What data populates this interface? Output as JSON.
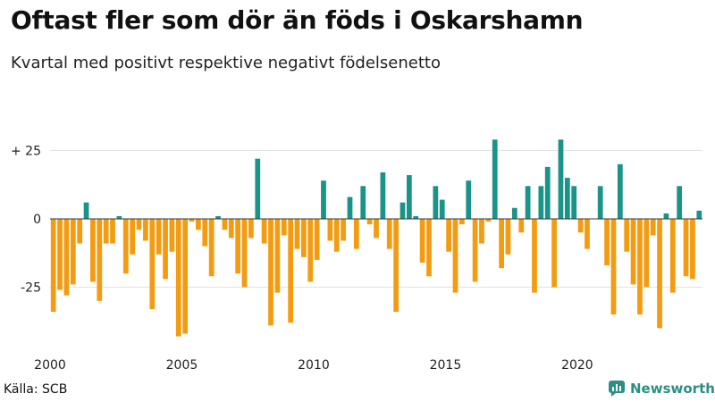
{
  "chart_data": {
    "type": "bar",
    "title": "Oftast fler som dör än föds i Oskarshamn",
    "subtitle": "Kvartal med positivt respektive negativt födelsenetto",
    "xlabel": "",
    "ylabel": "",
    "x_start": 2000,
    "periods_per_year": 4,
    "ylim": [
      -45,
      30
    ],
    "y_ticks": [
      {
        "value": 25,
        "label": "+ 25"
      },
      {
        "value": 0,
        "label": "0"
      },
      {
        "value": -25,
        "label": "-25"
      }
    ],
    "x_ticks": [
      "2000",
      "2005",
      "2010",
      "2015",
      "2020"
    ],
    "values": [
      -34,
      -26,
      -28,
      -24,
      -9,
      6,
      -23,
      -30,
      -9,
      -9,
      1,
      -20,
      -13,
      -4,
      -8,
      -33,
      -13,
      -22,
      -12,
      -43,
      -42,
      -1,
      -4,
      -10,
      -21,
      1,
      -4,
      -7,
      -20,
      -25,
      -7,
      22,
      -9,
      -39,
      -27,
      -6,
      -38,
      -11,
      -14,
      -23,
      -15,
      14,
      -8,
      -12,
      -8,
      8,
      -11,
      12,
      -2,
      -7,
      17,
      -11,
      -34,
      6,
      16,
      1,
      -16,
      -21,
      12,
      7,
      -12,
      -27,
      -2,
      14,
      -23,
      -9,
      -1,
      29,
      -18,
      -13,
      4,
      -5,
      12,
      -27,
      12,
      19,
      -25,
      29,
      15,
      12,
      -5,
      -11,
      0,
      12,
      -17,
      -35,
      20,
      -12,
      -24,
      -35,
      -25,
      -6,
      -40,
      2,
      -27,
      12,
      -21,
      -22,
      3
    ],
    "colors": {
      "positive": "#1a9488",
      "negative": "#f39c12",
      "grid": "#e3e3e3",
      "axis": "#333333"
    }
  },
  "footer": {
    "source": "Källa: SCB",
    "brand": "Newsworthy"
  }
}
